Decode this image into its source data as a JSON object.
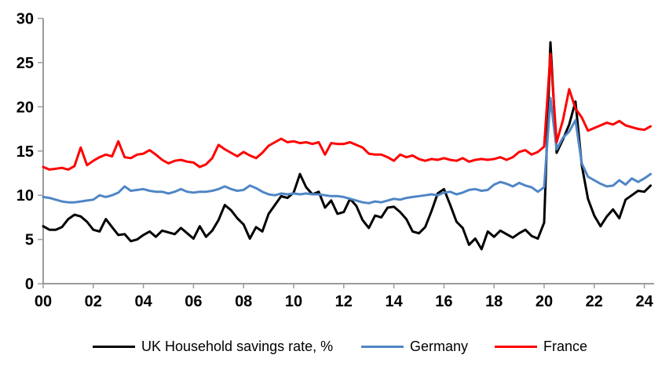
{
  "chart_data": {
    "type": "line",
    "title": "",
    "xlabel": "",
    "ylabel": "",
    "x_start_year": 2000,
    "x_step_years": 0.25,
    "x_end_year": 2024.25,
    "x_tick_years": [
      2000,
      2002,
      2004,
      2006,
      2008,
      2010,
      2012,
      2014,
      2016,
      2018,
      2020,
      2022,
      2024
    ],
    "x_tick_labels": [
      "00",
      "02",
      "04",
      "06",
      "08",
      "10",
      "12",
      "14",
      "16",
      "18",
      "20",
      "22",
      "24"
    ],
    "ylim": [
      0,
      30
    ],
    "y_ticks": [
      0,
      5,
      10,
      15,
      20,
      25,
      30
    ],
    "y_tick_labels": [
      "0",
      "5",
      "10",
      "15",
      "20",
      "25",
      "30"
    ],
    "grid": false,
    "legend_position": "bottom",
    "axis_color": "#9b9b9b",
    "series": [
      {
        "name": "UK Household savings rate, %",
        "color": "#000000",
        "values": [
          6.5,
          6.1,
          6.1,
          6.4,
          7.3,
          7.8,
          7.6,
          7.0,
          6.1,
          5.9,
          7.3,
          6.4,
          5.5,
          5.6,
          4.8,
          5.0,
          5.5,
          5.9,
          5.3,
          6.0,
          5.8,
          5.6,
          6.3,
          5.7,
          5.1,
          6.5,
          5.3,
          6.0,
          7.2,
          8.9,
          8.3,
          7.4,
          6.7,
          5.1,
          6.4,
          5.9,
          7.9,
          8.9,
          9.9,
          9.7,
          10.3,
          12.4,
          10.9,
          10.1,
          10.4,
          8.6,
          9.4,
          7.9,
          8.1,
          9.6,
          8.8,
          7.2,
          6.3,
          7.7,
          7.5,
          8.6,
          8.7,
          8.1,
          7.3,
          5.9,
          5.7,
          6.4,
          8.2,
          10.2,
          10.7,
          8.9,
          7.0,
          6.3,
          4.4,
          5.1,
          3.9,
          5.9,
          5.3,
          6.0,
          5.6,
          5.2,
          5.7,
          6.1,
          5.4,
          5.1,
          6.9,
          27.3,
          14.8,
          16.3,
          18.0,
          20.6,
          13.4,
          9.6,
          7.7,
          6.5,
          7.6,
          8.4,
          7.4,
          9.5,
          10.0,
          10.5,
          10.4,
          11.1
        ]
      },
      {
        "name": "Germany",
        "color": "#4f86c5",
        "values": [
          9.8,
          9.7,
          9.5,
          9.3,
          9.2,
          9.2,
          9.3,
          9.4,
          9.5,
          10.0,
          9.8,
          10.0,
          10.3,
          11.0,
          10.5,
          10.6,
          10.7,
          10.5,
          10.4,
          10.4,
          10.2,
          10.4,
          10.7,
          10.4,
          10.3,
          10.4,
          10.4,
          10.5,
          10.7,
          11.0,
          10.7,
          10.5,
          10.6,
          11.1,
          10.8,
          10.4,
          10.1,
          10.0,
          10.2,
          10.1,
          10.2,
          10.1,
          10.2,
          10.1,
          10.1,
          10.0,
          9.9,
          9.9,
          9.8,
          9.6,
          9.4,
          9.2,
          9.1,
          9.3,
          9.2,
          9.4,
          9.6,
          9.5,
          9.7,
          9.8,
          9.9,
          10.0,
          10.1,
          10.0,
          10.3,
          10.4,
          10.1,
          10.3,
          10.6,
          10.7,
          10.5,
          10.6,
          11.2,
          11.5,
          11.3,
          11.0,
          11.4,
          11.1,
          10.9,
          10.4,
          10.9,
          21.0,
          15.2,
          16.5,
          17.2,
          18.5,
          13.6,
          12.1,
          11.7,
          11.3,
          11.0,
          11.1,
          11.7,
          11.2,
          11.9,
          11.5,
          11.9,
          12.4
        ]
      },
      {
        "name": "France",
        "color": "#ff0000",
        "values": [
          13.2,
          12.9,
          13.0,
          13.1,
          12.9,
          13.3,
          15.4,
          13.4,
          13.9,
          14.3,
          14.6,
          14.4,
          16.1,
          14.3,
          14.2,
          14.6,
          14.7,
          15.1,
          14.6,
          14.0,
          13.6,
          13.9,
          14.0,
          13.8,
          13.7,
          13.2,
          13.5,
          14.2,
          15.7,
          15.2,
          14.8,
          14.4,
          14.9,
          14.5,
          14.2,
          14.8,
          15.6,
          16.0,
          16.4,
          16.0,
          16.1,
          15.9,
          16.0,
          15.8,
          16.0,
          14.6,
          15.9,
          15.8,
          15.8,
          16.0,
          15.7,
          15.4,
          14.7,
          14.6,
          14.6,
          14.3,
          13.9,
          14.6,
          14.3,
          14.5,
          14.1,
          13.9,
          14.1,
          14.0,
          14.2,
          14.0,
          13.9,
          14.2,
          13.8,
          14.0,
          14.1,
          14.0,
          14.1,
          14.3,
          14.0,
          14.3,
          14.9,
          15.1,
          14.6,
          14.9,
          15.5,
          26.0,
          16.0,
          18.5,
          22.0,
          19.8,
          18.8,
          17.3,
          17.6,
          17.9,
          18.2,
          18.0,
          18.4,
          17.9,
          17.7,
          17.5,
          17.4,
          17.8
        ]
      }
    ]
  },
  "legend": {
    "items": [
      {
        "label": "UK Household savings rate, %",
        "color": "#000000"
      },
      {
        "label": "Germany",
        "color": "#4f86c5"
      },
      {
        "label": "France",
        "color": "#ff0000"
      }
    ]
  }
}
